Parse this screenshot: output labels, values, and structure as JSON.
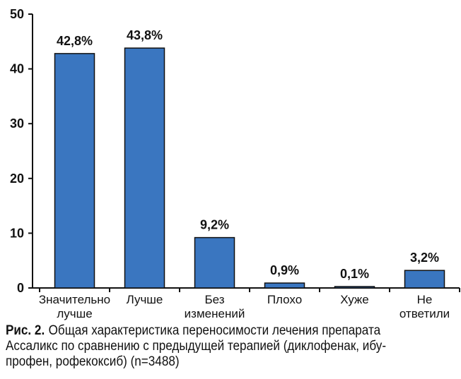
{
  "chart_data": {
    "type": "bar",
    "categories": [
      [
        "Значительно",
        "лучше"
      ],
      [
        "Лучше"
      ],
      [
        "Без",
        "изменений"
      ],
      [
        "Плохо"
      ],
      [
        "Хуже"
      ],
      [
        "Не",
        "ответили"
      ]
    ],
    "values": [
      42.8,
      43.8,
      9.2,
      0.9,
      0.1,
      3.2
    ],
    "data_labels": [
      "42,8%",
      "43,8%",
      "9,2%",
      "0,9%",
      "0,1%",
      "3,2%"
    ],
    "y_ticks": [
      "0",
      "10",
      "20",
      "30",
      "40",
      "50"
    ],
    "y_tick_values": [
      0,
      10,
      20,
      30,
      40,
      50
    ],
    "ylim": [
      0,
      50
    ],
    "title": "",
    "xlabel": "",
    "ylabel": "",
    "grid": false,
    "colors": {
      "bar_fill": "#3a76c0",
      "bar_stroke": "#111111",
      "axis": "#111111",
      "text": "#111111"
    }
  },
  "caption": {
    "label": "Рис. 2.",
    "text": "Общая характеристика переносимости лечения препарата Ассаликс по сравнению с предыдущей терапией (диклофенак, ибу-профен, рофекоксиб) (n=3488)"
  }
}
